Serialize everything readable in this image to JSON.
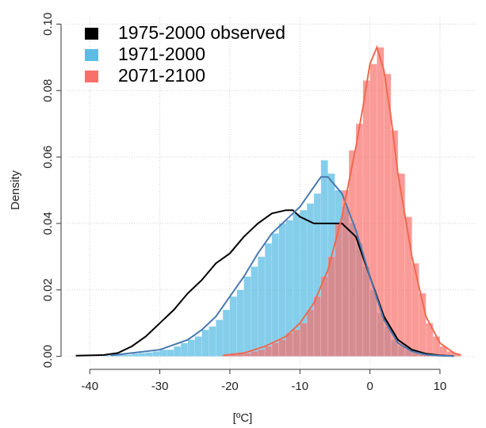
{
  "chart_data": {
    "type": "histogram",
    "xlabel": "[ºC]",
    "ylabel": "Density",
    "xlim": [
      -43.2,
      15.1
    ],
    "ylim": [
      -0.002,
      0.102
    ],
    "xticks": [
      -40,
      -30,
      -20,
      -10,
      0,
      10
    ],
    "yticks": [
      {
        "value": 0,
        "label": "0.00"
      },
      {
        "value": 0.02,
        "label": "0.02"
      },
      {
        "value": 0.04,
        "label": "0.04"
      },
      {
        "value": 0.06,
        "label": "0.06"
      },
      {
        "value": 0.08,
        "label": "0.08"
      },
      {
        "value": 0.1,
        "label": "0.10"
      }
    ],
    "grid": true,
    "legend": "top-left",
    "bins": [
      -38,
      -37,
      -36,
      -35,
      -34,
      -33,
      -32,
      -31,
      -30,
      -29,
      -28,
      -27,
      -26,
      -25,
      -24,
      -23,
      -22,
      -21,
      -20,
      -19,
      -18,
      -17,
      -16,
      -15,
      -14,
      -13,
      -12,
      -11,
      -10,
      -9,
      -8,
      -7,
      -6,
      -5,
      -4,
      -3,
      -2,
      -1,
      0,
      1,
      2,
      3,
      4,
      5,
      6,
      7,
      8,
      9,
      10,
      11,
      12,
      13
    ],
    "series": [
      {
        "name": "1971-2000",
        "color": "#5bbde4",
        "values": [
          0.0003,
          0.0003,
          0.0005,
          0.0005,
          0.0008,
          0.001,
          0.0012,
          0.0015,
          0.002,
          0.002,
          0.003,
          0.004,
          0.005,
          0.006,
          0.008,
          0.009,
          0.011,
          0.014,
          0.018,
          0.02,
          0.024,
          0.027,
          0.03,
          0.034,
          0.037,
          0.04,
          0.041,
          0.043,
          0.044,
          0.046,
          0.049,
          0.059,
          0.055,
          0.05,
          0.045,
          0.04,
          0.034,
          0.027,
          0.02,
          0.013,
          0.009,
          0.005,
          0.003,
          0.002,
          0.001,
          0.0008,
          0.0005,
          0.0003,
          0.0002,
          0.0001,
          0.0001
        ]
      },
      {
        "name": "2071-2100",
        "color": "#f8706b",
        "values": [
          0,
          0,
          0,
          0,
          0,
          0,
          0,
          0,
          0,
          0,
          0,
          0,
          0,
          0,
          0,
          0,
          0,
          0.0003,
          0.0005,
          0.0008,
          0.001,
          0.0015,
          0.002,
          0.003,
          0.004,
          0.005,
          0.007,
          0.008,
          0.01,
          0.014,
          0.018,
          0.024,
          0.03,
          0.04,
          0.05,
          0.062,
          0.07,
          0.083,
          0.088,
          0.093,
          0.085,
          0.068,
          0.055,
          0.042,
          0.028,
          0.019,
          0.01,
          0.006,
          0.003,
          0.0015,
          0.0007
        ]
      }
    ],
    "lines": [
      {
        "name": "1975-2000 observed",
        "color": "#000000",
        "x": [
          -42,
          -38,
          -36,
          -34,
          -32,
          -30,
          -28,
          -26,
          -24,
          -22,
          -20,
          -18,
          -16,
          -14,
          -12,
          -11,
          -10,
          -8,
          -6,
          -4,
          -2,
          0,
          2,
          4,
          6,
          8,
          10,
          12
        ],
        "y": [
          0.0002,
          0.0004,
          0.001,
          0.003,
          0.006,
          0.01,
          0.014,
          0.019,
          0.023,
          0.028,
          0.031,
          0.036,
          0.04,
          0.043,
          0.044,
          0.044,
          0.042,
          0.04,
          0.04,
          0.04,
          0.036,
          0.024,
          0.012,
          0.005,
          0.002,
          0.0008,
          0.0003,
          0.0001
        ]
      },
      {
        "color": "#4a79b0",
        "x": [
          -37,
          -34,
          -30,
          -26,
          -24,
          -22,
          -20,
          -18,
          -16,
          -14,
          -12,
          -10,
          -8,
          -7,
          -6,
          -4,
          -2,
          0,
          2,
          4,
          6,
          8,
          10,
          12
        ],
        "y": [
          0.0003,
          0.001,
          0.002,
          0.005,
          0.008,
          0.012,
          0.018,
          0.024,
          0.031,
          0.037,
          0.041,
          0.045,
          0.051,
          0.054,
          0.054,
          0.049,
          0.038,
          0.024,
          0.011,
          0.004,
          0.0015,
          0.0005,
          0.0002,
          0.0001
        ]
      },
      {
        "color": "#ef6a50",
        "x": [
          -21,
          -18,
          -15,
          -12,
          -10,
          -8,
          -6,
          -4,
          -2,
          -1,
          0,
          1,
          2,
          3,
          4,
          6,
          8,
          10,
          12,
          13
        ],
        "y": [
          0.0003,
          0.001,
          0.003,
          0.006,
          0.01,
          0.016,
          0.026,
          0.042,
          0.063,
          0.075,
          0.088,
          0.093,
          0.086,
          0.072,
          0.055,
          0.03,
          0.012,
          0.004,
          0.001,
          0.0004
        ]
      }
    ]
  }
}
